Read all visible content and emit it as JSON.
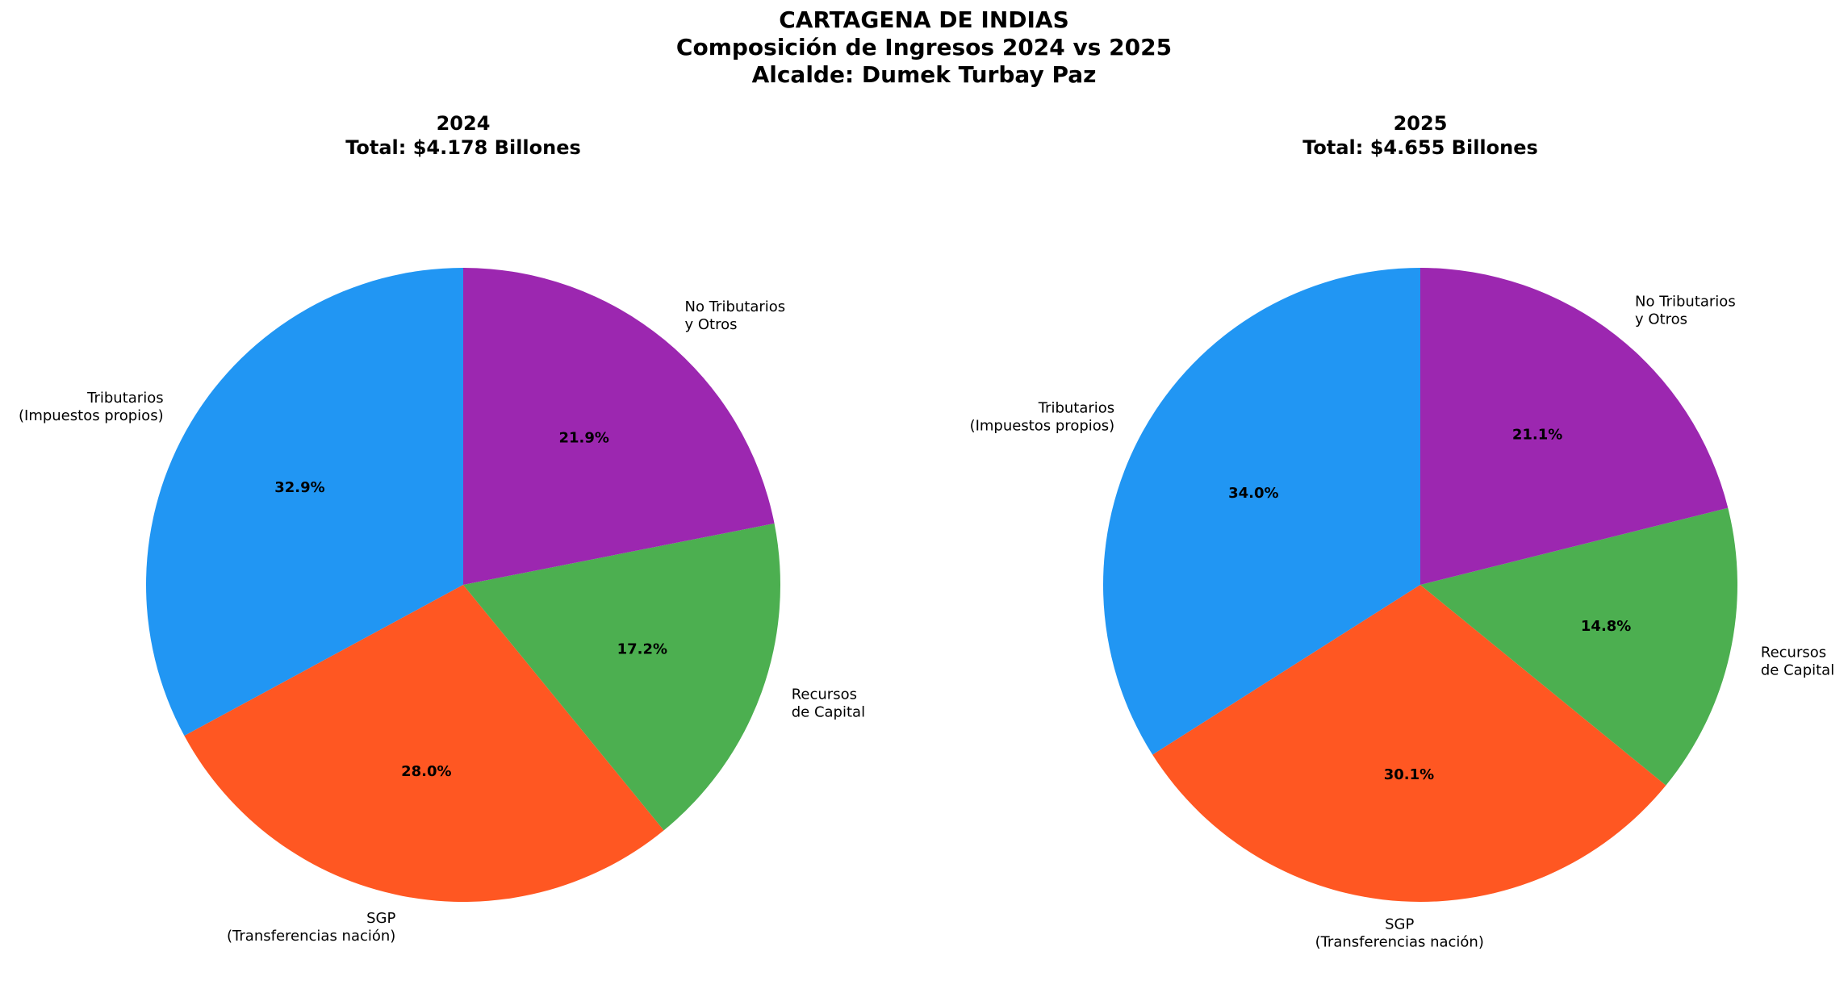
{
  "figure": {
    "title_lines": [
      "CARTAGENA DE INDIAS",
      "Composición de Ingresos 2024 vs 2025",
      "Alcalde: Dumek Turbay Paz"
    ]
  },
  "colors": {
    "tributarios": "#2196F3",
    "sgp": "#FF5722",
    "recursos_capital": "#4CAF50",
    "no_tributarios": "#9C27B0"
  },
  "chart_data": [
    {
      "type": "pie",
      "title_lines": [
        "2024",
        "Total: $4.178 Billones"
      ],
      "start_angle": 90,
      "direction": "counterclockwise",
      "slices": [
        {
          "label_lines": [
            "Tributarios",
            "(Impuestos propios)"
          ],
          "value": 32.9,
          "pct_label": "32.9%",
          "color": "#2196F3"
        },
        {
          "label_lines": [
            "SGP",
            "(Transferencias nación)"
          ],
          "value": 28.0,
          "pct_label": "28.0%",
          "color": "#FF5722"
        },
        {
          "label_lines": [
            "Recursos",
            "de Capital"
          ],
          "value": 17.2,
          "pct_label": "17.2%",
          "color": "#4CAF50"
        },
        {
          "label_lines": [
            "No Tributarios",
            "y Otros"
          ],
          "value": 21.9,
          "pct_label": "21.9%",
          "color": "#9C27B0"
        }
      ]
    },
    {
      "type": "pie",
      "title_lines": [
        "2025",
        "Total: $4.655 Billones"
      ],
      "start_angle": 90,
      "direction": "counterclockwise",
      "slices": [
        {
          "label_lines": [
            "Tributarios",
            "(Impuestos propios)"
          ],
          "value": 34.0,
          "pct_label": "34.0%",
          "color": "#2196F3"
        },
        {
          "label_lines": [
            "SGP",
            "(Transferencias nación)"
          ],
          "value": 30.1,
          "pct_label": "30.1%",
          "color": "#FF5722"
        },
        {
          "label_lines": [
            "Recursos",
            "de Capital"
          ],
          "value": 14.8,
          "pct_label": "14.8%",
          "color": "#4CAF50"
        },
        {
          "label_lines": [
            "No Tributarios",
            "y Otros"
          ],
          "value": 21.1,
          "pct_label": "21.1%",
          "color": "#9C27B0"
        }
      ]
    }
  ]
}
